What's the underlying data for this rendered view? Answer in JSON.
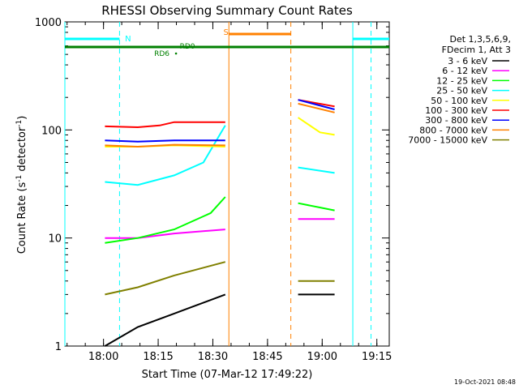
{
  "chart_data": {
    "type": "line",
    "title": "RHESSI Observing Summary Count Rates",
    "xlabel": "Start Time (07-Mar-12 17:49:22)",
    "ylabel_main": "Count Rate (s",
    "ylabel_sup1": "-1",
    "ylabel_mid": " detector",
    "ylabel_sup2": "-1",
    "ylabel_end": ")",
    "y_scale": "log",
    "ylim": [
      1,
      1000
    ],
    "x_unit": "minutes since 17:49:22",
    "xlim": [
      0,
      89
    ],
    "x_ticks": [
      {
        "label": "18:00",
        "value": 10.6
      },
      {
        "label": "18:15",
        "value": 25.6
      },
      {
        "label": "18:30",
        "value": 40.6
      },
      {
        "label": "18:45",
        "value": 55.6
      },
      {
        "label": "19:00",
        "value": 70.6
      },
      {
        "label": "19:15",
        "value": 85.6
      }
    ],
    "y_ticks": [
      {
        "label": "1",
        "value": 1
      },
      {
        "label": "10",
        "value": 10
      },
      {
        "label": "100",
        "value": 100
      },
      {
        "label": "1000",
        "value": 1000
      }
    ],
    "legend": {
      "header1": "Det 1,3,5,6,9,",
      "header2": "FDecim 1, Att 3",
      "position": "right"
    },
    "series": [
      {
        "name": "3 - 6 keV",
        "color": "#000000",
        "segments": [
          [
            [
              11,
              1
            ],
            [
              20,
              1.5
            ],
            [
              30,
              2
            ],
            [
              44,
              3
            ]
          ],
          [
            [
              64,
              3
            ],
            [
              74,
              3
            ]
          ]
        ]
      },
      {
        "name": "6 - 12 keV",
        "color": "#ff00ff",
        "segments": [
          [
            [
              11,
              10
            ],
            [
              20,
              10
            ],
            [
              30,
              11
            ],
            [
              44,
              12
            ]
          ],
          [
            [
              64,
              15
            ],
            [
              74,
              15
            ]
          ]
        ]
      },
      {
        "name": "12 - 25 keV",
        "color": "#00ff00",
        "segments": [
          [
            [
              11,
              9
            ],
            [
              20,
              10
            ],
            [
              30,
              12
            ],
            [
              40,
              17
            ],
            [
              44,
              24
            ]
          ],
          [
            [
              64,
              21
            ],
            [
              74,
              18
            ]
          ]
        ]
      },
      {
        "name": "25 - 50 keV",
        "color": "#00ffff",
        "segments": [
          [
            [
              11,
              33
            ],
            [
              20,
              31
            ],
            [
              30,
              38
            ],
            [
              38,
              50
            ],
            [
              44,
              110
            ]
          ],
          [
            [
              64,
              45
            ],
            [
              74,
              40
            ]
          ]
        ]
      },
      {
        "name": "50 - 100 keV",
        "color": "#ffff00",
        "segments": [
          [
            [
              11,
              70
            ],
            [
              20,
              70
            ],
            [
              30,
              72
            ],
            [
              44,
              70
            ]
          ],
          [
            [
              64,
              130
            ],
            [
              70,
              95
            ],
            [
              74,
              90
            ]
          ]
        ]
      },
      {
        "name": "100 - 300 keV",
        "color": "#ff0000",
        "segments": [
          [
            [
              11,
              108
            ],
            [
              20,
              106
            ],
            [
              26,
              110
            ],
            [
              30,
              118
            ],
            [
              44,
              118
            ]
          ],
          [
            [
              64,
              190
            ],
            [
              74,
              165
            ]
          ]
        ]
      },
      {
        "name": "300 - 800 keV",
        "color": "#0000ff",
        "segments": [
          [
            [
              11,
              80
            ],
            [
              20,
              78
            ],
            [
              30,
              80
            ],
            [
              44,
              80
            ]
          ],
          [
            [
              64,
              190
            ],
            [
              74,
              155
            ]
          ]
        ]
      },
      {
        "name": "800 - 7000 keV",
        "color": "#ff8000",
        "segments": [
          [
            [
              11,
              72
            ],
            [
              20,
              70
            ],
            [
              30,
              73
            ],
            [
              44,
              72
            ]
          ],
          [
            [
              64,
              175
            ],
            [
              74,
              145
            ]
          ]
        ]
      },
      {
        "name": "7000 - 15000 keV",
        "color": "#808000",
        "segments": [
          [
            [
              11,
              3
            ],
            [
              20,
              3.5
            ],
            [
              30,
              4.5
            ],
            [
              44,
              6
            ]
          ],
          [
            [
              64,
              4
            ],
            [
              74,
              4
            ]
          ]
        ]
      }
    ],
    "annotations": {
      "n_label": "N",
      "s_label": "S",
      "rd0_label": "RD0",
      "rd6_label": "RD6",
      "n_bar_color": "#00ffff",
      "s_bar_color": "#ff8000",
      "rd_bar_color": "#008000",
      "vertical_lines": [
        {
          "value": 0,
          "color": "#00ffff",
          "style": "solid"
        },
        {
          "value": 15,
          "color": "#00ffff",
          "style": "dashed"
        },
        {
          "value": 45,
          "color": "#ff8000",
          "style": "solid"
        },
        {
          "value": 62,
          "color": "#ff8000",
          "style": "dashed"
        },
        {
          "value": 79,
          "color": "#00ffff",
          "style": "solid"
        },
        {
          "value": 84,
          "color": "#00ffff",
          "style": "dashed"
        }
      ]
    }
  },
  "footer": {
    "timestamp": "19-Oct-2021 08:48"
  }
}
